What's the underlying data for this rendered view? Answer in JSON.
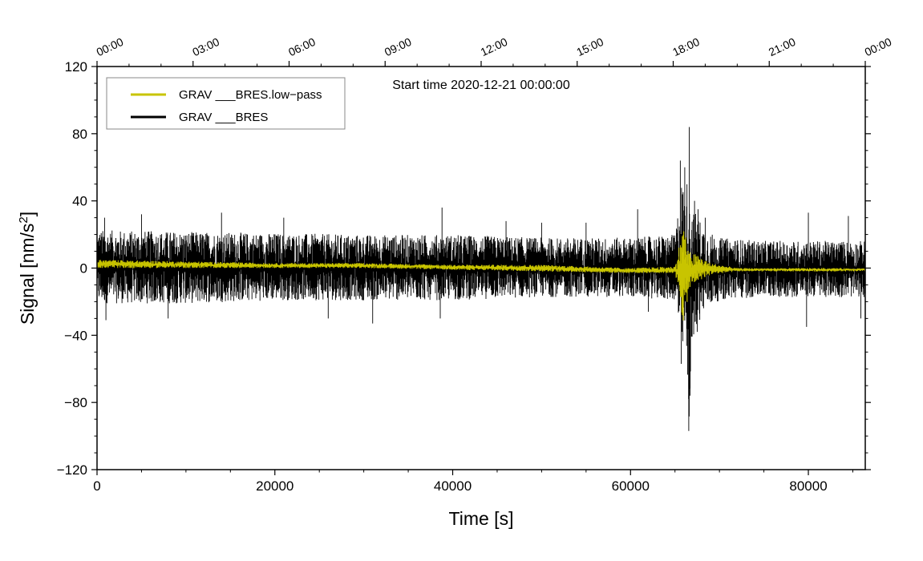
{
  "chart_data": {
    "type": "line",
    "title": "",
    "annotation": "Start time 2020-12-21 00:00:00",
    "xlabel": "Time [s]",
    "ylabel_main": "Signal [nm/s",
    "ylabel_sup": "2",
    "ylabel_close": "]",
    "xlim": [
      0,
      86400
    ],
    "ylim": [
      -120,
      120
    ],
    "xticks": [
      0,
      20000,
      40000,
      60000,
      80000
    ],
    "xtick_labels": [
      "0",
      "20000",
      "40000",
      "60000",
      "80000"
    ],
    "yticks": [
      -120,
      -80,
      -40,
      0,
      40,
      80,
      120
    ],
    "ytick_labels": [
      "−120",
      "−80",
      "−40",
      "0",
      "40",
      "80",
      "120"
    ],
    "top_axis_ticks_s": [
      0,
      10800,
      21600,
      32400,
      43200,
      54000,
      64800,
      75600,
      86400
    ],
    "top_axis_labels": [
      "00:00",
      "03:00",
      "06:00",
      "09:00",
      "12:00",
      "15:00",
      "18:00",
      "21:00",
      "00:00"
    ],
    "grid": false,
    "legend_position": "top-left",
    "series": [
      {
        "name": "GRAV ___BRES.low−pass",
        "color": "#c8c400",
        "band_x": [
          0,
          10000,
          20000,
          30000,
          40000,
          50000,
          60000,
          65000,
          66000,
          66500,
          67500,
          69000,
          72000,
          80000,
          86400
        ],
        "band_upper": [
          5,
          4,
          3,
          3,
          2,
          2,
          0,
          1,
          28,
          10,
          8,
          3,
          0,
          0,
          0
        ],
        "band_lower": [
          0,
          0,
          0,
          0,
          -1,
          -2,
          -3,
          -3,
          -35,
          -15,
          -8,
          -4,
          -2,
          -2,
          -2
        ]
      },
      {
        "name": "GRAV ___BRES",
        "color": "#000000",
        "band_x": [
          0,
          10000,
          20000,
          30000,
          40000,
          50000,
          60000,
          65000,
          65800,
          66200,
          66600,
          67000,
          67500,
          68500,
          70000,
          75000,
          80000,
          86400
        ],
        "band_upper": [
          25,
          24,
          23,
          22,
          22,
          20,
          20,
          22,
          60,
          45,
          82,
          40,
          35,
          25,
          20,
          18,
          18,
          18
        ],
        "band_lower": [
          -22,
          -22,
          -20,
          -20,
          -20,
          -18,
          -18,
          -20,
          -55,
          -45,
          -95,
          -45,
          -35,
          -25,
          -20,
          -18,
          -18,
          -18
        ],
        "peaks": [
          [
            850,
            30
          ],
          [
            5000,
            32
          ],
          [
            14000,
            33
          ],
          [
            21000,
            30
          ],
          [
            38800,
            36
          ],
          [
            46000,
            28
          ],
          [
            50000,
            27
          ],
          [
            55000,
            27
          ],
          [
            60800,
            35
          ],
          [
            80000,
            33
          ],
          [
            84500,
            31
          ],
          [
            1000,
            -31
          ],
          [
            8000,
            -30
          ],
          [
            26000,
            -30
          ],
          [
            31000,
            -33
          ],
          [
            38600,
            -30
          ],
          [
            62000,
            -26
          ],
          [
            79800,
            -35
          ],
          [
            85900,
            -30
          ],
          [
            65600,
            64
          ],
          [
            66100,
            60
          ],
          [
            66600,
            84
          ],
          [
            66550,
            -97
          ],
          [
            65700,
            -57
          ],
          [
            66700,
            -76
          ],
          [
            67200,
            40
          ],
          [
            67600,
            35
          ],
          [
            68400,
            30
          ],
          [
            67500,
            -38
          ]
        ]
      }
    ]
  }
}
